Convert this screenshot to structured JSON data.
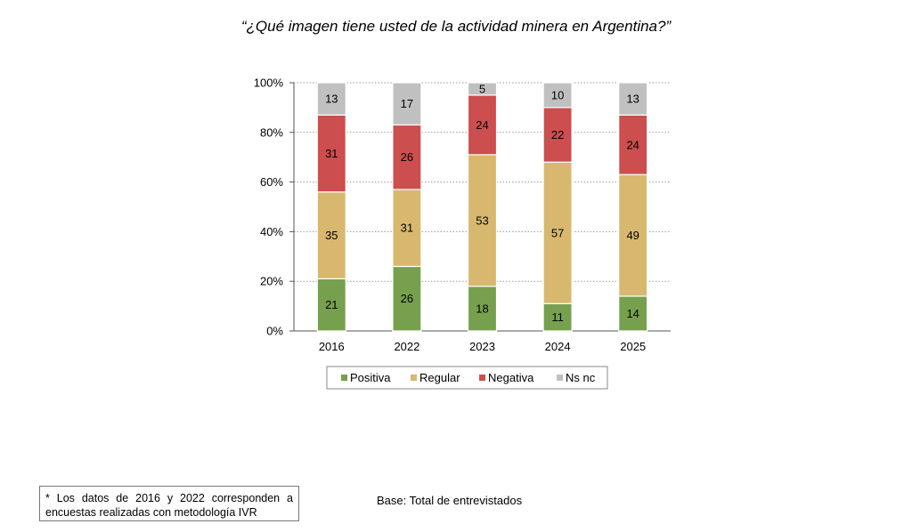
{
  "title": "“¿Qué imagen tiene usted de la actividad minera en Argentina?”",
  "footnote": "* Los datos de 2016 y 2022 corresponden a encuestas realizadas con metodología IVR",
  "base_text": "Base: Total de entrevistados",
  "chart_data": {
    "type": "bar",
    "stacked": true,
    "percent_stacked": true,
    "categories": [
      "2016",
      "2022",
      "2023",
      "2024",
      "2025"
    ],
    "series": [
      {
        "name": "Positiva",
        "color": "#77a04e",
        "values": [
          21,
          26,
          18,
          11,
          14
        ]
      },
      {
        "name": "Regular",
        "color": "#d8b86e",
        "values": [
          35,
          31,
          53,
          57,
          49
        ]
      },
      {
        "name": "Negativa",
        "color": "#cc4e4e",
        "values": [
          31,
          26,
          24,
          22,
          24
        ]
      },
      {
        "name": "Ns nc",
        "color": "#c0c0c0",
        "values": [
          13,
          17,
          5,
          10,
          13
        ]
      }
    ],
    "yticks": [
      "0%",
      "20%",
      "40%",
      "60%",
      "80%",
      "100%"
    ],
    "ylim": [
      0,
      100
    ],
    "grid": true,
    "legend_position": "bottom",
    "xlabel": "",
    "ylabel": ""
  }
}
